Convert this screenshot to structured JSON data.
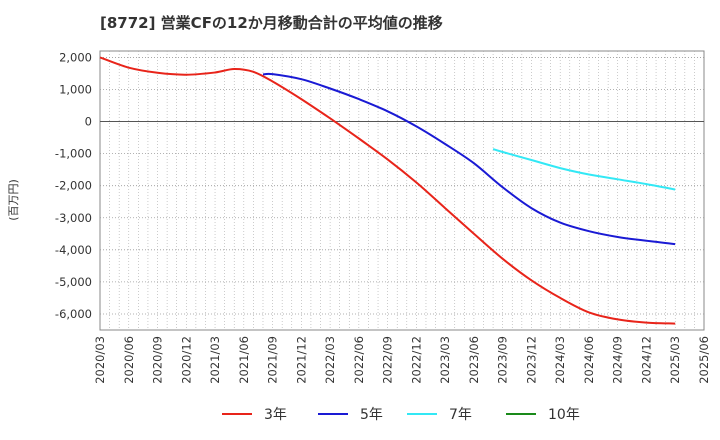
{
  "chart_data": {
    "type": "line",
    "title": "[8772]  営業CFの12か月移動合計の平均値の推移",
    "ylabel": "(百万円)",
    "xlabel": "",
    "ylim": [
      -6500,
      2200
    ],
    "y_ticks": [
      2000,
      1000,
      0,
      -1000,
      -2000,
      -3000,
      -4000,
      -5000,
      -6000
    ],
    "y_tick_labels": [
      "2,000",
      "1,000",
      "0",
      "-1,000",
      "-2,000",
      "-3,000",
      "-4,000",
      "-5,000",
      "-6,000"
    ],
    "x_ticks": [
      "2020/03",
      "2020/06",
      "2020/09",
      "2020/12",
      "2021/03",
      "2021/06",
      "2021/09",
      "2021/12",
      "2022/03",
      "2022/06",
      "2022/09",
      "2022/12",
      "2023/03",
      "2023/06",
      "2023/09",
      "2023/12",
      "2024/03",
      "2024/06",
      "2024/09",
      "2024/12",
      "2025/03",
      "2025/06"
    ],
    "grid": true,
    "legend_position": "bottom",
    "series": [
      {
        "name": "3年",
        "color": "#e8241a",
        "points": [
          [
            "2020/03",
            2000
          ],
          [
            "2020/06",
            1680
          ],
          [
            "2020/09",
            1520
          ],
          [
            "2020/12",
            1460
          ],
          [
            "2021/03",
            1530
          ],
          [
            "2021/05",
            1640
          ],
          [
            "2021/07",
            1550
          ],
          [
            "2021/09",
            1250
          ],
          [
            "2021/12",
            700
          ],
          [
            "2022/03",
            100
          ],
          [
            "2022/06",
            -530
          ],
          [
            "2022/09",
            -1180
          ],
          [
            "2022/12",
            -1900
          ],
          [
            "2023/03",
            -2700
          ],
          [
            "2023/06",
            -3500
          ],
          [
            "2023/09",
            -4280
          ],
          [
            "2023/12",
            -4950
          ],
          [
            "2024/03",
            -5500
          ],
          [
            "2024/06",
            -5950
          ],
          [
            "2024/09",
            -6170
          ],
          [
            "2024/12",
            -6270
          ],
          [
            "2025/03",
            -6300
          ]
        ]
      },
      {
        "name": "5年",
        "color": "#1a1ad4",
        "points": [
          [
            "2021/08",
            1470
          ],
          [
            "2021/09",
            1480
          ],
          [
            "2021/12",
            1320
          ],
          [
            "2022/03",
            1030
          ],
          [
            "2022/06",
            700
          ],
          [
            "2022/09",
            320
          ],
          [
            "2022/12",
            -150
          ],
          [
            "2023/03",
            -700
          ],
          [
            "2023/06",
            -1300
          ],
          [
            "2023/09",
            -2050
          ],
          [
            "2023/12",
            -2700
          ],
          [
            "2024/03",
            -3150
          ],
          [
            "2024/06",
            -3420
          ],
          [
            "2024/09",
            -3600
          ],
          [
            "2024/12",
            -3720
          ],
          [
            "2025/03",
            -3820
          ]
        ]
      },
      {
        "name": "7年",
        "color": "#33e8f5",
        "points": [
          [
            "2023/08",
            -860
          ],
          [
            "2023/09",
            -950
          ],
          [
            "2023/12",
            -1200
          ],
          [
            "2024/03",
            -1450
          ],
          [
            "2024/06",
            -1650
          ],
          [
            "2024/09",
            -1800
          ],
          [
            "2024/12",
            -1950
          ],
          [
            "2025/03",
            -2120
          ]
        ]
      },
      {
        "name": "10年",
        "color": "#1a8a1a",
        "points": []
      }
    ]
  }
}
